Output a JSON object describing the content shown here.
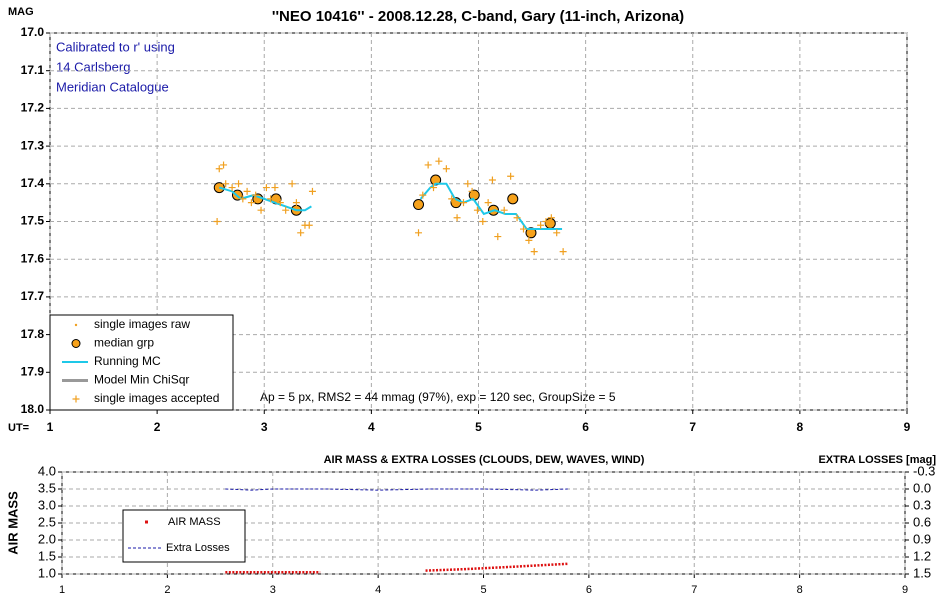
{
  "chart_data": [
    {
      "type": "scatter",
      "title": "''NEO 10416'' - 2008.12.28, C-band, Gary (11-inch, Arizona)",
      "ylabel": "MAG",
      "xlabel": "UT=",
      "notes": [
        "Calibrated to r' using",
        "14 Carlsberg",
        "Meridian Catalogue"
      ],
      "footnote": "Ap = 5 px, RMS2 = 44 mmag (97%), exp = 120 sec, GroupSize = 5",
      "xlim": [
        1,
        9
      ],
      "xticks": [
        1,
        2,
        3,
        4,
        5,
        6,
        7,
        8,
        9
      ],
      "ylim": [
        17,
        18
      ],
      "y_inverted": true,
      "yticks": [
        {
          "value": 17,
          "label": "17.0"
        },
        17.1,
        17.2,
        17.3,
        17.4,
        17.5,
        17.6,
        17.7,
        17.8,
        17.9,
        {
          "value": 18,
          "label": "18.0"
        }
      ],
      "grid": true,
      "legend": "lower left",
      "series": [
        {
          "name": "single images raw",
          "color": "#f0a020",
          "marker": "dot",
          "x": [],
          "values": []
        },
        {
          "name": "median grp",
          "color": "#f7a21b",
          "marker": "circle",
          "x": [
            2.58,
            2.75,
            2.94,
            3.11,
            3.3,
            4.44,
            4.6,
            4.79,
            4.96,
            5.14,
            5.32,
            5.49,
            5.67
          ],
          "values": [
            17.41,
            17.43,
            17.44,
            17.44,
            17.47,
            17.455,
            17.39,
            17.45,
            17.43,
            17.47,
            17.44,
            17.53,
            17.505
          ]
        },
        {
          "name": "Running MC",
          "color": "#1ec8e8",
          "marker": "line",
          "x": [
            2.58,
            2.7,
            2.78,
            2.9,
            3.0,
            3.1,
            3.2,
            3.3,
            3.38,
            3.44,
            null,
            4.46,
            4.55,
            4.6,
            4.7,
            4.78,
            4.86,
            4.95,
            5.05,
            5.15,
            5.25,
            5.35,
            5.45,
            5.55,
            5.65,
            5.78
          ],
          "values": [
            17.41,
            17.42,
            17.44,
            17.43,
            17.44,
            17.45,
            17.46,
            17.47,
            17.47,
            17.46,
            null,
            17.44,
            17.41,
            17.4,
            17.4,
            17.44,
            17.45,
            17.44,
            17.48,
            17.47,
            17.48,
            17.48,
            17.52,
            17.52,
            17.52,
            17.52
          ]
        },
        {
          "name": "Model Min ChiSqr",
          "color": "#999999",
          "marker": "thick",
          "x": [],
          "values": []
        },
        {
          "name": "single images accepted",
          "color": "#f0a020",
          "marker": "plus",
          "x": [
            2.56,
            2.58,
            2.62,
            2.64,
            2.7,
            2.76,
            2.8,
            2.84,
            2.88,
            2.92,
            2.97,
            3.02,
            3.06,
            3.1,
            3.15,
            3.2,
            3.26,
            3.3,
            3.34,
            3.38,
            3.42,
            3.45,
            4.44,
            4.48,
            4.53,
            4.58,
            4.63,
            4.7,
            4.75,
            4.8,
            4.86,
            4.9,
            4.94,
            4.99,
            5.04,
            5.09,
            5.13,
            5.18,
            5.24,
            5.3,
            5.36,
            5.42,
            5.47,
            5.52,
            5.58,
            5.63,
            5.68,
            5.73,
            5.79
          ],
          "values": [
            17.5,
            17.36,
            17.35,
            17.4,
            17.41,
            17.4,
            17.44,
            17.42,
            17.45,
            17.43,
            17.47,
            17.41,
            17.44,
            17.41,
            17.45,
            17.47,
            17.4,
            17.45,
            17.53,
            17.51,
            17.51,
            17.42,
            17.53,
            17.43,
            17.35,
            17.41,
            17.34,
            17.36,
            17.44,
            17.49,
            17.45,
            17.4,
            17.42,
            17.47,
            17.5,
            17.45,
            17.39,
            17.54,
            17.47,
            17.38,
            17.49,
            17.52,
            17.55,
            17.58,
            17.51,
            17.5,
            17.49,
            17.53,
            17.58
          ]
        }
      ]
    },
    {
      "type": "line",
      "title": "AIR MASS & EXTRA LOSSES (CLOUDS, DEW, WAVES, WIND)",
      "ylabel": "AIR MASS",
      "y2label": "EXTRA LOSSES [mag]",
      "xlim": [
        1,
        9
      ],
      "xticks": [
        1,
        2,
        3,
        4,
        5,
        6,
        7,
        8,
        9
      ],
      "ylim": [
        1,
        4
      ],
      "yticks": [
        {
          "value": 1,
          "label": "1.0"
        },
        1.5,
        {
          "value": 2,
          "label": "2.0"
        },
        2.5,
        {
          "value": 3,
          "label": "3.0"
        },
        3.5,
        {
          "value": 4,
          "label": "4.0"
        }
      ],
      "y2lim": [
        -0.3,
        1.5
      ],
      "y2_inverted": true,
      "y2ticks": [
        -0.3,
        {
          "value": 0,
          "label": "0.0"
        },
        0.3,
        0.6,
        0.9,
        1.2,
        1.5
      ],
      "grid": true,
      "legend": "center left",
      "series": [
        {
          "name": "AIR MASS",
          "color": "#dd1111",
          "marker": "dots",
          "x": [
            2.55,
            2.8,
            3.1,
            3.45,
            null,
            4.45,
            4.8,
            5.2,
            5.5,
            5.8
          ],
          "values": [
            1.05,
            1.05,
            1.05,
            1.05,
            null,
            1.1,
            1.14,
            1.2,
            1.25,
            1.3
          ]
        },
        {
          "name": "Extra Losses",
          "color": "#1a1aa8",
          "marker": "dashes",
          "axis": "y2",
          "x": [
            2.55,
            2.8,
            3.0,
            3.5,
            4.0,
            4.5,
            5.0,
            5.5,
            5.8
          ],
          "values": [
            0,
            0.02,
            0,
            0,
            0.02,
            0,
            0,
            0.02,
            0
          ]
        }
      ]
    }
  ]
}
